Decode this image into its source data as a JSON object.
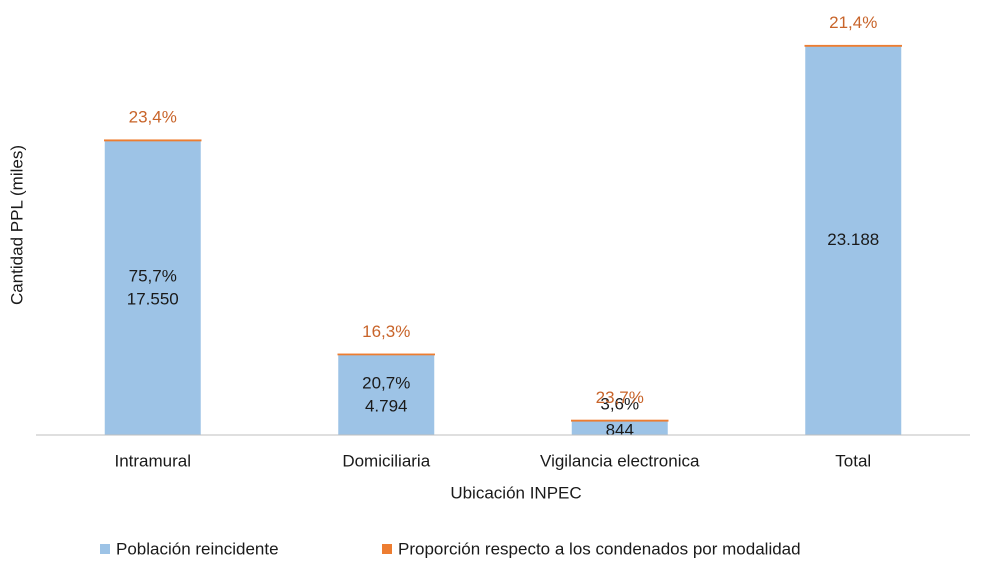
{
  "chart_data": {
    "type": "stacked_bar",
    "x_label": "Ubicación INPEC",
    "y_label": "Cantidad PPL (miles)",
    "categories": [
      "Intramural",
      "Domiciliaria",
      "Vigilancia electronica",
      "Total"
    ],
    "series": [
      {
        "name": "Población reincidente",
        "color": "#9dc3e6",
        "values": [
          17550,
          4794,
          844,
          23188
        ],
        "value_labels": [
          "17.550",
          "4.794",
          "844",
          "23.188"
        ],
        "shares": [
          75.7,
          20.7,
          3.6,
          null
        ],
        "share_labels": [
          "75,7%",
          "20,7%",
          "3,6%",
          null
        ]
      },
      {
        "name": "Proporción respecto a los condenados por modalidad",
        "color": "#ed7d31",
        "values": [
          23.4,
          16.3,
          23.7,
          21.4
        ],
        "value_labels": [
          "23,4%",
          "16,3%",
          "23,7%",
          "21,4%"
        ]
      }
    ],
    "ylim": [
      0,
      24500
    ],
    "legend": "bottom"
  }
}
